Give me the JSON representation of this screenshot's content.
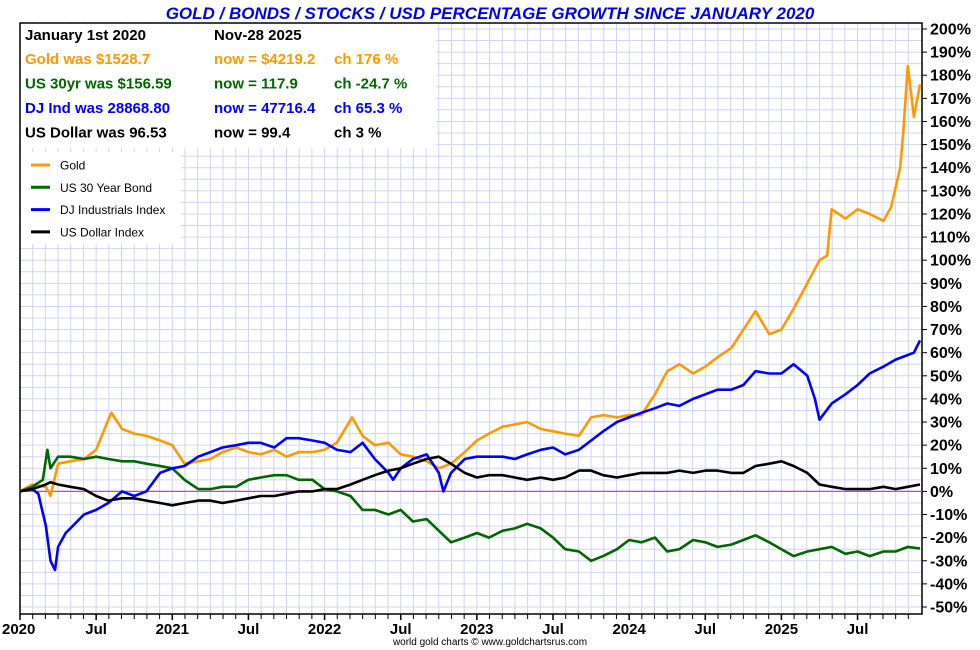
{
  "chart_data": {
    "type": "line",
    "title": "GOLD / BONDS / STOCKS / USD PERCENTAGE GROWTH SINCE JANUARY 2020",
    "xlabel": "",
    "ylabel": "",
    "ylim": [
      -50,
      200
    ],
    "xlim": [
      2020.0,
      2025.91
    ],
    "grid": true,
    "legend_position": "top-left",
    "y_ticks": [
      "200%",
      "190%",
      "180%",
      "170%",
      "160%",
      "150%",
      "140%",
      "130%",
      "120%",
      "110%",
      "100%",
      "90%",
      "80%",
      "70%",
      "60%",
      "50%",
      "40%",
      "30%",
      "20%",
      "10%",
      "0%",
      "-10%",
      "-20%",
      "-30%",
      "-40%",
      "-50%"
    ],
    "y_tick_values": [
      200,
      190,
      180,
      170,
      160,
      150,
      140,
      130,
      120,
      110,
      100,
      90,
      80,
      70,
      60,
      50,
      40,
      30,
      20,
      10,
      0,
      -10,
      -20,
      -30,
      -40,
      -50
    ],
    "x_ticks": [
      {
        "label": "2020",
        "x": 2020.0
      },
      {
        "label": "Jul",
        "x": 2020.5
      },
      {
        "label": "2021",
        "x": 2021.0
      },
      {
        "label": "Jul",
        "x": 2021.5
      },
      {
        "label": "2022",
        "x": 2022.0
      },
      {
        "label": "Jul",
        "x": 2022.5
      },
      {
        "label": "2023",
        "x": 2023.0
      },
      {
        "label": "Jul",
        "x": 2023.5
      },
      {
        "label": "2024",
        "x": 2024.0
      },
      {
        "label": "Jul",
        "x": 2024.5
      },
      {
        "label": "2025",
        "x": 2025.0
      },
      {
        "label": "Jul",
        "x": 2025.5
      }
    ],
    "reference_line": {
      "value": 0,
      "color": "#dd33dd"
    },
    "series": [
      {
        "name": "Gold",
        "color": "#ff9900",
        "x": [
          2020.0,
          2020.08,
          2020.17,
          2020.2,
          2020.25,
          2020.33,
          2020.42,
          2020.5,
          2020.58,
          2020.6,
          2020.67,
          2020.75,
          2020.83,
          2020.92,
          2021.0,
          2021.08,
          2021.17,
          2021.25,
          2021.33,
          2021.42,
          2021.5,
          2021.58,
          2021.67,
          2021.75,
          2021.83,
          2021.92,
          2022.0,
          2022.08,
          2022.18,
          2022.25,
          2022.33,
          2022.42,
          2022.5,
          2022.58,
          2022.67,
          2022.75,
          2022.83,
          2022.92,
          2023.0,
          2023.08,
          2023.17,
          2023.25,
          2023.33,
          2023.42,
          2023.5,
          2023.58,
          2023.67,
          2023.75,
          2023.83,
          2023.92,
          2024.0,
          2024.08,
          2024.17,
          2024.25,
          2024.33,
          2024.42,
          2024.5,
          2024.58,
          2024.67,
          2024.75,
          2024.83,
          2024.92,
          2025.0,
          2025.08,
          2025.17,
          2025.25,
          2025.3,
          2025.33,
          2025.42,
          2025.5,
          2025.58,
          2025.67,
          2025.72,
          2025.78,
          2025.8,
          2025.83,
          2025.87,
          2025.91
        ],
        "y": [
          0,
          3,
          2,
          -2,
          12,
          13,
          14,
          18,
          31,
          34,
          27,
          25,
          24,
          22,
          20,
          12,
          13,
          14,
          17,
          19,
          17,
          16,
          18,
          15,
          17,
          17,
          18,
          21,
          32,
          24,
          20,
          21,
          16,
          15,
          13,
          10,
          12,
          17,
          22,
          25,
          28,
          29,
          30,
          27,
          26,
          25,
          24,
          32,
          33,
          32,
          33,
          33,
          42,
          52,
          55,
          51,
          54,
          58,
          62,
          70,
          78,
          68,
          70,
          79,
          90,
          100,
          102,
          122,
          118,
          122,
          120,
          117,
          123,
          140,
          155,
          184,
          162,
          176
        ]
      },
      {
        "name": "US 30 Year Bond",
        "color": "#006600",
        "x": [
          2020.0,
          2020.08,
          2020.15,
          2020.18,
          2020.2,
          2020.25,
          2020.33,
          2020.42,
          2020.5,
          2020.58,
          2020.67,
          2020.75,
          2020.83,
          2020.92,
          2021.0,
          2021.08,
          2021.17,
          2021.25,
          2021.33,
          2021.42,
          2021.5,
          2021.58,
          2021.67,
          2021.75,
          2021.83,
          2021.92,
          2022.0,
          2022.08,
          2022.17,
          2022.25,
          2022.33,
          2022.42,
          2022.5,
          2022.58,
          2022.67,
          2022.75,
          2022.83,
          2022.92,
          2023.0,
          2023.08,
          2023.17,
          2023.25,
          2023.33,
          2023.42,
          2023.5,
          2023.58,
          2023.67,
          2023.75,
          2023.83,
          2023.92,
          2024.0,
          2024.08,
          2024.17,
          2024.25,
          2024.33,
          2024.42,
          2024.5,
          2024.58,
          2024.67,
          2024.75,
          2024.83,
          2024.92,
          2025.0,
          2025.08,
          2025.17,
          2025.25,
          2025.33,
          2025.42,
          2025.5,
          2025.58,
          2025.67,
          2025.75,
          2025.83,
          2025.91
        ],
        "y": [
          0,
          2,
          5,
          18,
          10,
          15,
          15,
          14,
          15,
          14,
          13,
          13,
          12,
          11,
          10,
          5,
          1,
          1,
          2,
          2,
          5,
          6,
          7,
          7,
          5,
          5,
          1,
          0,
          -2,
          -8,
          -8,
          -10,
          -8,
          -13,
          -12,
          -17,
          -22,
          -20,
          -18,
          -20,
          -17,
          -16,
          -14,
          -16,
          -20,
          -25,
          -26,
          -30,
          -28,
          -25,
          -21,
          -22,
          -20,
          -26,
          -25,
          -21,
          -22,
          -24,
          -23,
          -21,
          -19,
          -22,
          -25,
          -28,
          -26,
          -25,
          -24,
          -27,
          -26,
          -28,
          -26,
          -26,
          -24,
          -24.7
        ]
      },
      {
        "name": "DJ Industrials Index",
        "color": "#0000ff",
        "x": [
          2020.0,
          2020.08,
          2020.12,
          2020.17,
          2020.2,
          2020.23,
          2020.25,
          2020.3,
          2020.33,
          2020.42,
          2020.5,
          2020.58,
          2020.67,
          2020.75,
          2020.83,
          2020.92,
          2021.0,
          2021.08,
          2021.17,
          2021.25,
          2021.33,
          2021.42,
          2021.5,
          2021.58,
          2021.67,
          2021.75,
          2021.83,
          2021.92,
          2022.0,
          2022.08,
          2022.17,
          2022.25,
          2022.33,
          2022.42,
          2022.45,
          2022.5,
          2022.58,
          2022.67,
          2022.75,
          2022.78,
          2022.83,
          2022.92,
          2023.0,
          2023.08,
          2023.17,
          2023.25,
          2023.33,
          2023.42,
          2023.5,
          2023.58,
          2023.67,
          2023.75,
          2023.83,
          2023.92,
          2024.0,
          2024.08,
          2024.17,
          2024.25,
          2024.33,
          2024.42,
          2024.5,
          2024.58,
          2024.67,
          2024.75,
          2024.83,
          2024.92,
          2025.0,
          2025.08,
          2025.17,
          2025.22,
          2025.25,
          2025.33,
          2025.42,
          2025.5,
          2025.58,
          2025.67,
          2025.75,
          2025.83,
          2025.87,
          2025.91
        ],
        "y": [
          0,
          1,
          -1,
          -15,
          -30,
          -34,
          -24,
          -18,
          -16,
          -10,
          -8,
          -5,
          0,
          -2,
          0,
          8,
          10,
          11,
          15,
          17,
          19,
          20,
          21,
          21,
          19,
          23,
          23,
          22,
          21,
          18,
          17,
          21,
          14,
          8,
          5,
          10,
          14,
          16,
          8,
          0,
          8,
          14,
          15,
          15,
          15,
          14,
          16,
          18,
          19,
          16,
          18,
          22,
          26,
          30,
          32,
          34,
          36,
          38,
          37,
          40,
          42,
          44,
          44,
          46,
          52,
          51,
          51,
          55,
          50,
          40,
          31,
          38,
          42,
          46,
          51,
          54,
          57,
          59,
          60,
          65.3
        ]
      },
      {
        "name": "US Dollar Index",
        "color": "#000000",
        "x": [
          2020.0,
          2020.08,
          2020.17,
          2020.2,
          2020.25,
          2020.33,
          2020.42,
          2020.5,
          2020.58,
          2020.67,
          2020.75,
          2020.83,
          2020.92,
          2021.0,
          2021.08,
          2021.17,
          2021.25,
          2021.33,
          2021.42,
          2021.5,
          2021.58,
          2021.67,
          2021.75,
          2021.83,
          2021.92,
          2022.0,
          2022.08,
          2022.17,
          2022.25,
          2022.33,
          2022.42,
          2022.5,
          2022.58,
          2022.67,
          2022.75,
          2022.83,
          2022.92,
          2023.0,
          2023.08,
          2023.17,
          2023.25,
          2023.33,
          2023.42,
          2023.5,
          2023.58,
          2023.67,
          2023.75,
          2023.83,
          2023.92,
          2024.0,
          2024.08,
          2024.17,
          2024.25,
          2024.33,
          2024.42,
          2024.5,
          2024.58,
          2024.67,
          2024.75,
          2024.83,
          2024.92,
          2025.0,
          2025.08,
          2025.17,
          2025.25,
          2025.33,
          2025.42,
          2025.5,
          2025.58,
          2025.67,
          2025.75,
          2025.83,
          2025.91
        ],
        "y": [
          0,
          1,
          3,
          4,
          3,
          2,
          1,
          -2,
          -4,
          -3,
          -3,
          -4,
          -5,
          -6,
          -5,
          -4,
          -4,
          -5,
          -4,
          -3,
          -2,
          -2,
          -1,
          0,
          0,
          1,
          1,
          3,
          5,
          7,
          9,
          10,
          12,
          14,
          15,
          12,
          8,
          6,
          7,
          7,
          6,
          5,
          6,
          5,
          6,
          9,
          9,
          7,
          6,
          7,
          8,
          8,
          8,
          9,
          8,
          9,
          9,
          8,
          8,
          11,
          12,
          13,
          11,
          8,
          3,
          2,
          1,
          1,
          1,
          2,
          1,
          2,
          3
        ]
      }
    ]
  },
  "info_box": {
    "header_left": "January 1st 2020",
    "header_right": "Nov-28  2025",
    "rows": [
      {
        "label": "Gold was $1528.7",
        "now": "now = $4219.2",
        "change": "ch 176 %",
        "color": "#ff9900"
      },
      {
        "label": "US 30yr was $156.59",
        "now": "now = 117.9",
        "change": "ch -24.7 %",
        "color": "#006600"
      },
      {
        "label": "DJ Ind was 28868.80",
        "now": "now = 47716.4",
        "change": "ch 65.3 %",
        "color": "#0000ff"
      },
      {
        "label": "US Dollar was 96.53",
        "now": "now = 99.4",
        "change": "ch 3 %",
        "color": "#000000"
      }
    ]
  },
  "credit": "world gold charts © www.goldchartsrus.com"
}
